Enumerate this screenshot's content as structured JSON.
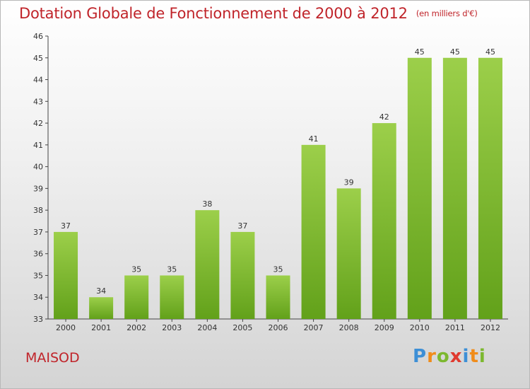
{
  "header": {
    "title": "Dotation Globale de Fonctionnement de 2000 à 2012",
    "unit": "(en milliers d'€)"
  },
  "footer": {
    "commune": "MAISOD",
    "brand_letters": [
      {
        "char": "P",
        "color": "#3d8fd6"
      },
      {
        "char": "r",
        "color": "#f08c1a"
      },
      {
        "char": "o",
        "color": "#7cb82f"
      },
      {
        "char": "x",
        "color": "#e03a2f"
      },
      {
        "char": "i",
        "color": "#3d8fd6"
      },
      {
        "char": "t",
        "color": "#f08c1a"
      },
      {
        "char": "i",
        "color": "#7cb82f"
      }
    ]
  },
  "chart_data": {
    "type": "bar",
    "categories": [
      "2000",
      "2001",
      "2002",
      "2003",
      "2004",
      "2005",
      "2006",
      "2007",
      "2008",
      "2009",
      "2010",
      "2011",
      "2012"
    ],
    "values": [
      37,
      34,
      35,
      35,
      38,
      37,
      35,
      41,
      39,
      42,
      45,
      45,
      45
    ],
    "ylim": [
      33,
      46
    ],
    "yticks": [
      33,
      34,
      35,
      36,
      37,
      38,
      39,
      40,
      41,
      42,
      43,
      44,
      45,
      46
    ],
    "grid": false,
    "bar_color_light": "#9ccf4a",
    "bar_color_dark": "#62a11a",
    "title_color": "#c0242a"
  }
}
